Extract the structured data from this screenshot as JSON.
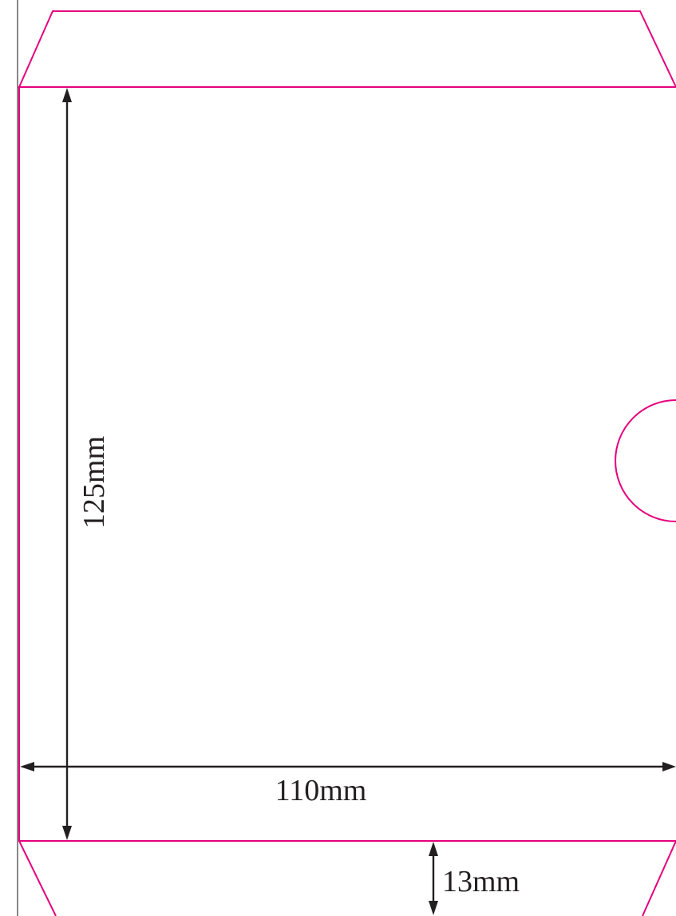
{
  "colors": {
    "cut_line": "#e6007e",
    "dimension_line": "#231f20",
    "frame_line": "#3a3a3a",
    "background": "#ffffff"
  },
  "dimensions": {
    "height_label": "125mm",
    "width_label": "110mm",
    "bottom_flap_label": "13mm"
  }
}
